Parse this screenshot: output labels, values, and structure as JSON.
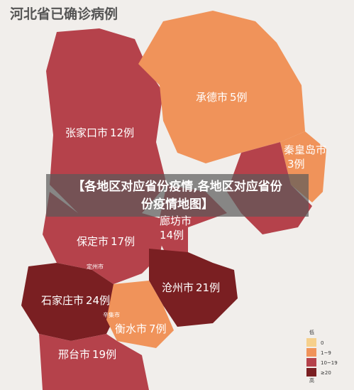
{
  "title": "河北省已确诊病例",
  "banner": {
    "line1": "【各地区对应省份疫情,各地区对应省份",
    "line2": "份疫情地图】"
  },
  "regions": [
    {
      "name": "张家口市",
      "count": "12例"
    },
    {
      "name": "承德市",
      "count": "5例"
    },
    {
      "name": "秦皇岛市",
      "count": "3例"
    },
    {
      "name": "廊坊市",
      "count": "14例"
    },
    {
      "name": "保定市",
      "count": "17例"
    },
    {
      "name": "沧州市",
      "count": "21例"
    },
    {
      "name": "石家庄市",
      "count": "24例"
    },
    {
      "name": "衡水市",
      "count": "7例"
    },
    {
      "name": "邢台市",
      "count": "19例"
    }
  ],
  "small_labels": [
    "定州市",
    "辛集市"
  ],
  "legend": {
    "low": "低",
    "high": "高",
    "items": [
      "0",
      "1~9",
      "10~19",
      "≥20"
    ]
  }
}
